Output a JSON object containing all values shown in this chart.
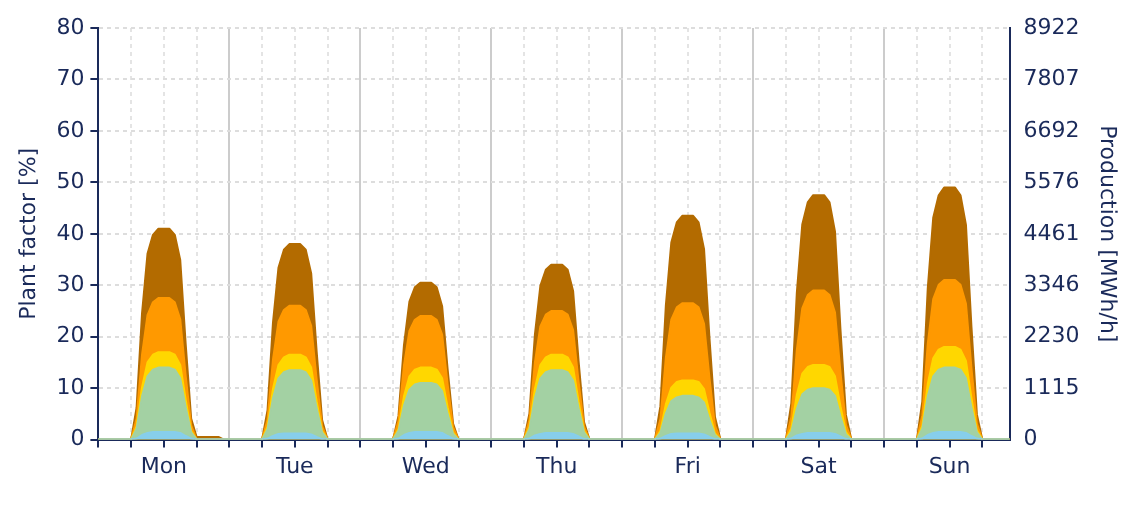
{
  "chart_data": {
    "type": "area",
    "ylabel": "Plant factor [%]",
    "y2label": "Production [MWh/h]",
    "categories": [
      null,
      null,
      null,
      null,
      null,
      null,
      null,
      null,
      null,
      null,
      null,
      null,
      "Mon",
      null,
      null,
      null,
      null,
      null,
      null,
      null,
      null,
      null,
      null,
      null,
      null,
      null,
      null,
      null,
      null,
      null,
      null,
      null,
      null,
      null,
      null,
      null,
      "Tue",
      null,
      null,
      null,
      null,
      null,
      null,
      null,
      null,
      null,
      null,
      null,
      null,
      null,
      null,
      null,
      null,
      null,
      null,
      null,
      null,
      null,
      null,
      null,
      "Wed",
      null,
      null,
      null,
      null,
      null,
      null,
      null,
      null,
      null,
      null,
      null,
      null,
      null,
      null,
      null,
      null,
      null,
      null,
      null,
      null,
      null,
      null,
      null,
      "Thu",
      null,
      null,
      null,
      null,
      null,
      null,
      null,
      null,
      null,
      null,
      null,
      null,
      null,
      null,
      null,
      null,
      null,
      null,
      null,
      null,
      null,
      null,
      null,
      "Fri",
      null,
      null,
      null,
      null,
      null,
      null,
      null,
      null,
      null,
      null,
      null,
      null,
      null,
      null,
      null,
      null,
      null,
      null,
      null,
      null,
      null,
      null,
      null,
      "Sat",
      null,
      null,
      null,
      null,
      null,
      null,
      null,
      null,
      null,
      null,
      null,
      null,
      null,
      null,
      null,
      null,
      null,
      null,
      null,
      null,
      null,
      null,
      null,
      "Sun",
      null,
      null,
      null,
      null,
      null,
      null,
      null,
      null,
      null,
      null,
      null
    ],
    "series": [
      {
        "color": "#b36b00",
        "values": [
          0,
          0,
          0,
          0,
          0,
          0,
          0,
          6.2,
          24.6,
          36.1,
          39.8,
          41,
          41,
          41,
          39.8,
          34.9,
          18.5,
          4.1,
          0.5,
          0.5,
          0.5,
          0.5,
          0.5,
          0,
          0,
          0,
          0,
          0,
          0,
          0,
          0,
          5.7,
          22.8,
          33.4,
          36.9,
          38,
          38,
          38,
          36.9,
          32.3,
          17.1,
          3.8,
          0,
          0,
          0,
          0,
          0,
          0,
          0,
          0,
          0,
          0,
          0,
          0,
          0,
          4.6,
          18.3,
          26.8,
          29.6,
          30.5,
          30.5,
          30.5,
          29.6,
          25.9,
          13.7,
          3.1,
          0,
          0,
          0,
          0,
          0,
          0,
          0,
          0,
          0,
          0,
          0,
          0,
          0,
          5.1,
          20.4,
          29.9,
          33,
          34,
          34,
          34,
          33,
          28.9,
          15.3,
          3.4,
          0,
          0,
          0,
          0,
          0,
          0,
          0,
          0,
          0,
          0,
          0,
          0,
          0,
          6.5,
          26.1,
          38.3,
          42.2,
          43.5,
          43.5,
          43.5,
          42.2,
          37,
          19.6,
          4.4,
          0,
          0,
          0,
          0,
          0,
          0,
          0,
          0,
          0,
          0,
          0,
          0,
          0,
          7.1,
          28.5,
          41.8,
          46.1,
          47.5,
          47.5,
          47.5,
          46.1,
          40.4,
          21.4,
          4.8,
          0,
          0,
          0,
          0,
          0,
          0,
          0,
          0,
          0,
          0,
          0,
          0,
          0,
          7.4,
          29.4,
          43.1,
          47.5,
          49,
          49,
          49,
          47.5,
          41.7,
          22,
          4.9,
          0,
          0,
          0,
          0,
          0,
          0
        ]
      },
      {
        "color": "#ff9900",
        "values": [
          0,
          0,
          0,
          0,
          0,
          0,
          0,
          4.1,
          16.5,
          24.2,
          26.7,
          27.5,
          27.5,
          27.5,
          26.7,
          23.4,
          12.4,
          2.8,
          0,
          0,
          0,
          0,
          0,
          0,
          0,
          0,
          0,
          0,
          0,
          0,
          0,
          3.9,
          15.6,
          22.9,
          25.2,
          26,
          26,
          26,
          25.2,
          22.1,
          11.7,
          2.6,
          0,
          0,
          0,
          0,
          0,
          0,
          0,
          0,
          0,
          0,
          0,
          0,
          0,
          3.6,
          14.4,
          21.1,
          23.3,
          24,
          24,
          24,
          23.3,
          20.4,
          10.8,
          2.4,
          0,
          0,
          0,
          0,
          0,
          0,
          0,
          0,
          0,
          0,
          0,
          0,
          0,
          3.8,
          15,
          22,
          24.3,
          25,
          25,
          25,
          24.3,
          21.3,
          11.3,
          2.5,
          0,
          0,
          0,
          0,
          0,
          0,
          0,
          0,
          0,
          0,
          0,
          0,
          0,
          4,
          15.9,
          23.3,
          25.7,
          26.5,
          26.5,
          26.5,
          25.7,
          22.5,
          11.9,
          2.7,
          0,
          0,
          0,
          0,
          0,
          0,
          0,
          0,
          0,
          0,
          0,
          0,
          0,
          4.4,
          17.4,
          25.5,
          28.1,
          29,
          29,
          29,
          28.1,
          24.7,
          13.1,
          2.9,
          0,
          0,
          0,
          0,
          0,
          0,
          0,
          0,
          0,
          0,
          0,
          0,
          0,
          4.7,
          18.6,
          27.3,
          30.1,
          31,
          31,
          31,
          30.1,
          26.4,
          14,
          3.1,
          0,
          0,
          0,
          0,
          0,
          0
        ]
      },
      {
        "color": "#ffd700",
        "values": [
          0,
          0,
          0,
          0,
          0,
          0,
          0,
          2.6,
          10.2,
          15,
          16.5,
          17,
          17,
          17,
          16.5,
          14.5,
          7.7,
          1.7,
          0,
          0,
          0,
          0,
          0,
          0,
          0,
          0,
          0,
          0,
          0,
          0,
          0,
          2.5,
          9.9,
          14.5,
          16,
          16.5,
          16.5,
          16.5,
          16,
          14,
          7.4,
          1.7,
          0,
          0,
          0,
          0,
          0,
          0,
          0,
          0,
          0,
          0,
          0,
          0,
          0,
          2.1,
          8.4,
          12.3,
          13.6,
          14,
          14,
          14,
          13.6,
          11.9,
          6.3,
          1.4,
          0,
          0,
          0,
          0,
          0,
          0,
          0,
          0,
          0,
          0,
          0,
          0,
          0,
          2.5,
          9.9,
          14.5,
          16,
          16.5,
          16.5,
          16.5,
          16,
          14,
          7.4,
          1.7,
          0,
          0,
          0,
          0,
          0,
          0,
          0,
          0,
          0,
          0,
          0,
          0,
          0,
          1.7,
          6.9,
          10.1,
          11.2,
          11.5,
          11.5,
          11.5,
          11.2,
          9.8,
          5.2,
          1.2,
          0,
          0,
          0,
          0,
          0,
          0,
          0,
          0,
          0,
          0,
          0,
          0,
          0,
          2.2,
          8.7,
          12.8,
          14.1,
          14.5,
          14.5,
          14.5,
          14.1,
          12.3,
          6.5,
          1.5,
          0,
          0,
          0,
          0,
          0,
          0,
          0,
          0,
          0,
          0,
          0,
          0,
          0,
          2.7,
          10.8,
          15.8,
          17.5,
          18,
          18,
          18,
          17.5,
          15.3,
          8.1,
          1.8,
          0,
          0,
          0,
          0,
          0,
          0
        ]
      },
      {
        "color": "#a3d1a3",
        "values": [
          0,
          0,
          0,
          0,
          0,
          0,
          0,
          2.1,
          8.4,
          12.3,
          13.6,
          14,
          14,
          14,
          13.6,
          11.9,
          6.3,
          1.4,
          0,
          0,
          0,
          0,
          0,
          0,
          0,
          0,
          0,
          0,
          0,
          0,
          0,
          2,
          8.1,
          11.9,
          13.1,
          13.5,
          13.5,
          13.5,
          13.1,
          11.5,
          6.1,
          1.4,
          0,
          0,
          0,
          0,
          0,
          0,
          0,
          0,
          0,
          0,
          0,
          0,
          0,
          1.7,
          6.6,
          9.7,
          10.7,
          11,
          11,
          11,
          10.7,
          9.4,
          5,
          1.1,
          0,
          0,
          0,
          0,
          0,
          0,
          0,
          0,
          0,
          0,
          0,
          0,
          0,
          2,
          8.1,
          11.9,
          13.1,
          13.5,
          13.5,
          13.5,
          13.1,
          11.5,
          6.1,
          1.4,
          0,
          0,
          0,
          0,
          0,
          0,
          0,
          0,
          0,
          0,
          0,
          0,
          0,
          1.3,
          5.1,
          7.5,
          8.2,
          8.5,
          8.5,
          8.5,
          8.2,
          7.2,
          3.8,
          0.9,
          0,
          0,
          0,
          0,
          0,
          0,
          0,
          0,
          0,
          0,
          0,
          0,
          0,
          1.5,
          6,
          8.8,
          9.7,
          10,
          10,
          10,
          9.7,
          8.5,
          4.5,
          1,
          0,
          0,
          0,
          0,
          0,
          0,
          0,
          0,
          0,
          0,
          0,
          0,
          0,
          2.1,
          8.4,
          12.3,
          13.6,
          14,
          14,
          14,
          13.6,
          11.9,
          6.3,
          1.4,
          0,
          0,
          0,
          0,
          0,
          0
        ]
      },
      {
        "color": "#87ceeb",
        "values": [
          0,
          0,
          0,
          0,
          0,
          0,
          0,
          0.2,
          0.9,
          1.3,
          1.5,
          1.5,
          1.5,
          1.5,
          1.5,
          1.3,
          0.7,
          0.2,
          0,
          0,
          0,
          0,
          0,
          0,
          0,
          0,
          0,
          0,
          0,
          0,
          0,
          0.2,
          0.7,
          1.1,
          1.2,
          1.2,
          1.2,
          1.2,
          1.2,
          1,
          0.5,
          0.1,
          0,
          0,
          0,
          0,
          0,
          0,
          0,
          0,
          0,
          0,
          0,
          0,
          0,
          0.2,
          0.9,
          1.3,
          1.5,
          1.5,
          1.5,
          1.5,
          1.5,
          1.3,
          0.7,
          0.2,
          0,
          0,
          0,
          0,
          0,
          0,
          0,
          0,
          0,
          0,
          0,
          0,
          0,
          0.2,
          0.8,
          1.1,
          1.3,
          1.3,
          1.3,
          1.3,
          1.3,
          1.1,
          0.6,
          0.1,
          0,
          0,
          0,
          0,
          0,
          0,
          0,
          0,
          0,
          0,
          0,
          0,
          0,
          0.2,
          0.7,
          1.1,
          1.2,
          1.2,
          1.2,
          1.2,
          1.2,
          1,
          0.5,
          0.1,
          0,
          0,
          0,
          0,
          0,
          0,
          0,
          0,
          0,
          0,
          0,
          0,
          0,
          0.2,
          0.8,
          1.1,
          1.3,
          1.3,
          1.3,
          1.3,
          1.3,
          1.1,
          0.6,
          0.1,
          0,
          0,
          0,
          0,
          0,
          0,
          0,
          0,
          0,
          0,
          0,
          0,
          0,
          0.2,
          0.9,
          1.3,
          1.5,
          1.5,
          1.5,
          1.5,
          1.5,
          1.3,
          0.7,
          0.2,
          0,
          0,
          0,
          0,
          0,
          0
        ]
      }
    ],
    "ylim": [
      0,
      80
    ],
    "yticks": [
      0,
      10,
      20,
      30,
      40,
      50,
      60,
      70,
      80
    ],
    "y2lim": [
      0,
      8922
    ],
    "y2ticks": [
      0,
      1115,
      2230,
      3346,
      4461,
      5576,
      6692,
      7807,
      8922
    ],
    "grid": true,
    "legend": false,
    "marker": "none"
  }
}
